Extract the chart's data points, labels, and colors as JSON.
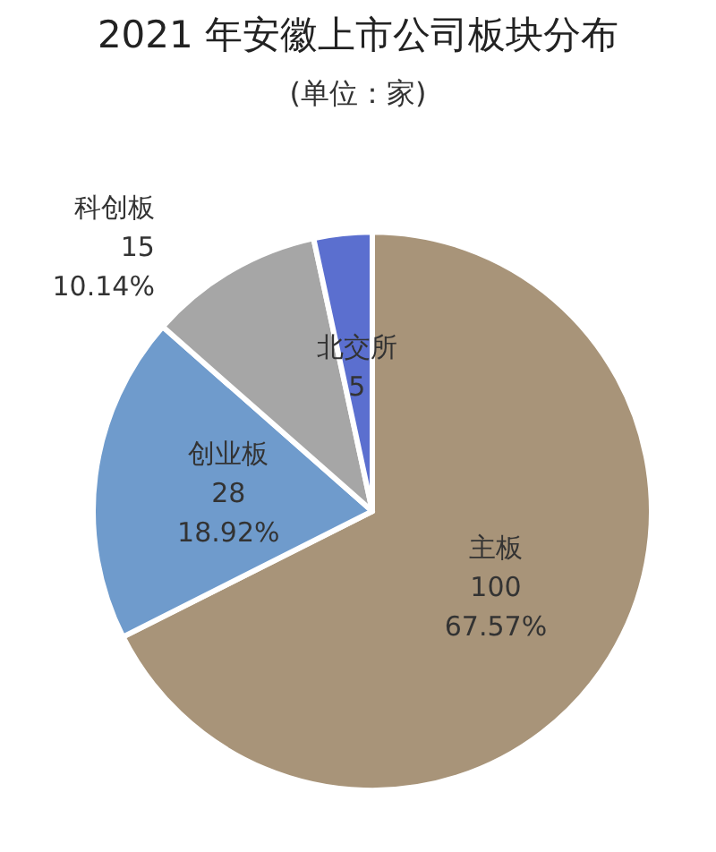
{
  "chart_data": {
    "type": "pie",
    "title": "2021 年安徽上市公司板块分布",
    "subtitle": "(单位：家)",
    "categories": [
      "主板",
      "创业板",
      "科创板",
      "北交所"
    ],
    "values": [
      100,
      28,
      15,
      5
    ],
    "colors": [
      "#a89479",
      "#6f9bcc",
      "#a6a6a6",
      "#5b6fcf"
    ],
    "data_labels": true,
    "annotations": [
      {
        "text": "67.57%",
        "x": "主板"
      },
      {
        "text": "18.92%",
        "x": "创业板"
      },
      {
        "text": "10.14%",
        "x": "科创板"
      }
    ],
    "legend": false
  }
}
